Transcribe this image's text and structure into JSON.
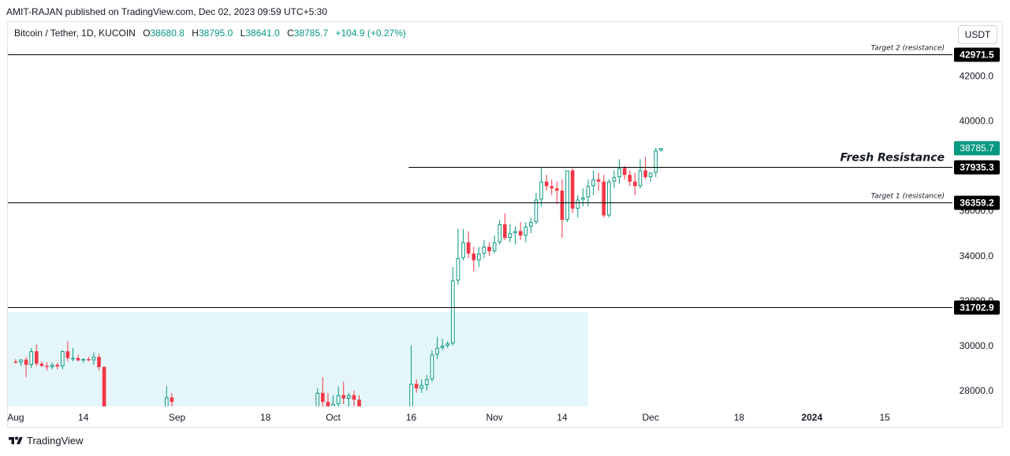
{
  "header": {
    "published": "AMIT-RAJAN published on TradingView.com, Dec 02, 2023 09:59 UTC+5:30"
  },
  "legend": {
    "symbol": "Bitcoin / Tether, 1D, KUCOIN",
    "o_label": "O",
    "o_value": "38680.8",
    "h_label": "H",
    "h_value": "38795.0",
    "l_label": "L",
    "l_value": "38641.0",
    "c_label": "C",
    "c_value": "38785.7",
    "change": "+104.9 (+0.27%)"
  },
  "currency_button": "USDT",
  "footer": {
    "brand": "TradingView"
  },
  "colors": {
    "up": "#089981",
    "down": "#f23645",
    "zone": "#e4f6f9",
    "line": "#000000"
  },
  "chart_data": {
    "type": "candlestick",
    "ylim": [
      27300,
      44400
    ],
    "y_ticks": [
      "28000.0",
      "30000.0",
      "32000.0",
      "34000.0",
      "36000.0",
      "40000.0",
      "42000.0"
    ],
    "x_ticks": [
      {
        "label": "Aug",
        "day": 0
      },
      {
        "label": "14",
        "day": 13
      },
      {
        "label": "Sep",
        "day": 31
      },
      {
        "label": "18",
        "day": 48
      },
      {
        "label": "Oct",
        "day": 61
      },
      {
        "label": "16",
        "day": 76
      },
      {
        "label": "Nov",
        "day": 92
      },
      {
        "label": "14",
        "day": 105
      },
      {
        "label": "Dec",
        "day": 122
      },
      {
        "label": "18",
        "day": 139
      },
      {
        "label": "2024",
        "day": 153
      },
      {
        "label": "15",
        "day": 167
      }
    ],
    "x_range": [
      -1.5,
      180
    ],
    "last_price": {
      "value": 38785.7,
      "label": "38785.7"
    },
    "levels": [
      {
        "value": 42971.5,
        "label": "42971.5",
        "caption": "Target 2 (resistance)",
        "start_day": -1.5
      },
      {
        "value": 37935.3,
        "label": "37935.3",
        "caption": "Fresh Resistance",
        "start_day": 75.5
      },
      {
        "value": 36359.2,
        "label": "36359.2",
        "caption": "Target 1 (resistance)",
        "start_day": -1.5
      },
      {
        "value": 31702.9,
        "label": "31702.9",
        "caption": "",
        "start_day": -1.5
      }
    ],
    "zone": {
      "from_day": -1.5,
      "to_day": 110,
      "top": 31500,
      "bottom": 27300
    },
    "candles": [
      {
        "d": 0,
        "o": 29300,
        "h": 29400,
        "l": 29200,
        "c": 29250
      },
      {
        "d": 1,
        "o": 29250,
        "h": 29400,
        "l": 29100,
        "c": 29380
      },
      {
        "d": 2,
        "o": 29380,
        "h": 29500,
        "l": 28600,
        "c": 29150
      },
      {
        "d": 3,
        "o": 29150,
        "h": 29900,
        "l": 29000,
        "c": 29750
      },
      {
        "d": 4,
        "o": 29750,
        "h": 30050,
        "l": 29100,
        "c": 29200
      },
      {
        "d": 5,
        "o": 29200,
        "h": 29300,
        "l": 29050,
        "c": 29100
      },
      {
        "d": 6,
        "o": 29100,
        "h": 29250,
        "l": 28900,
        "c": 29050
      },
      {
        "d": 7,
        "o": 29050,
        "h": 29250,
        "l": 28950,
        "c": 29150
      },
      {
        "d": 8,
        "o": 29150,
        "h": 29250,
        "l": 28950,
        "c": 29080
      },
      {
        "d": 9,
        "o": 29080,
        "h": 29800,
        "l": 28950,
        "c": 29750
      },
      {
        "d": 10,
        "o": 29750,
        "h": 30200,
        "l": 29300,
        "c": 29450
      },
      {
        "d": 11,
        "o": 29450,
        "h": 29900,
        "l": 29300,
        "c": 29450
      },
      {
        "d": 12,
        "o": 29450,
        "h": 29600,
        "l": 29300,
        "c": 29350
      },
      {
        "d": 13,
        "o": 29350,
        "h": 29450,
        "l": 29250,
        "c": 29400
      },
      {
        "d": 14,
        "o": 29400,
        "h": 29500,
        "l": 29300,
        "c": 29350
      },
      {
        "d": 15,
        "o": 29350,
        "h": 29700,
        "l": 29150,
        "c": 29500
      },
      {
        "d": 16,
        "o": 29500,
        "h": 29650,
        "l": 28900,
        "c": 29050
      },
      {
        "d": 17,
        "o": 29050,
        "h": 29100,
        "l": 25500,
        "c": 26300
      },
      {
        "d": 29,
        "o": 27000,
        "h": 28200,
        "l": 26800,
        "c": 27700
      },
      {
        "d": 30,
        "o": 27700,
        "h": 27900,
        "l": 27100,
        "c": 27500
      },
      {
        "d": 58,
        "o": 27000,
        "h": 28100,
        "l": 26900,
        "c": 27900
      },
      {
        "d": 59,
        "o": 27900,
        "h": 28600,
        "l": 27300,
        "c": 27500
      },
      {
        "d": 60,
        "o": 27500,
        "h": 27900,
        "l": 27000,
        "c": 27200
      },
      {
        "d": 61,
        "o": 27200,
        "h": 27800,
        "l": 26500,
        "c": 27400
      },
      {
        "d": 62,
        "o": 27400,
        "h": 28200,
        "l": 27000,
        "c": 27800
      },
      {
        "d": 63,
        "o": 27800,
        "h": 28400,
        "l": 27400,
        "c": 27650
      },
      {
        "d": 64,
        "o": 27650,
        "h": 27900,
        "l": 27200,
        "c": 27800
      },
      {
        "d": 65,
        "o": 27800,
        "h": 28000,
        "l": 27300,
        "c": 27600
      },
      {
        "d": 66,
        "o": 27600,
        "h": 27800,
        "l": 26900,
        "c": 27100
      },
      {
        "d": 76,
        "o": 26800,
        "h": 30000,
        "l": 26700,
        "c": 28300
      },
      {
        "d": 77,
        "o": 28300,
        "h": 28500,
        "l": 27900,
        "c": 28100
      },
      {
        "d": 78,
        "o": 28100,
        "h": 28500,
        "l": 27900,
        "c": 28250
      },
      {
        "d": 79,
        "o": 28250,
        "h": 28700,
        "l": 28000,
        "c": 28500
      },
      {
        "d": 80,
        "o": 28500,
        "h": 29800,
        "l": 28400,
        "c": 29600
      },
      {
        "d": 81,
        "o": 29600,
        "h": 30400,
        "l": 29400,
        "c": 29900
      },
      {
        "d": 82,
        "o": 29900,
        "h": 30300,
        "l": 29800,
        "c": 30000
      },
      {
        "d": 83,
        "o": 30000,
        "h": 30200,
        "l": 29900,
        "c": 30100
      },
      {
        "d": 84,
        "o": 30100,
        "h": 33500,
        "l": 30000,
        "c": 32900
      },
      {
        "d": 85,
        "o": 32900,
        "h": 35200,
        "l": 32700,
        "c": 33900
      },
      {
        "d": 86,
        "o": 33900,
        "h": 35200,
        "l": 33800,
        "c": 34600
      },
      {
        "d": 87,
        "o": 34600,
        "h": 35100,
        "l": 33900,
        "c": 34100
      },
      {
        "d": 88,
        "o": 34100,
        "h": 34400,
        "l": 33300,
        "c": 33800
      },
      {
        "d": 89,
        "o": 33800,
        "h": 34400,
        "l": 33500,
        "c": 34100
      },
      {
        "d": 90,
        "o": 34100,
        "h": 34700,
        "l": 33900,
        "c": 34400
      },
      {
        "d": 91,
        "o": 34400,
        "h": 34600,
        "l": 34000,
        "c": 34200
      },
      {
        "d": 92,
        "o": 34200,
        "h": 34900,
        "l": 34100,
        "c": 34600
      },
      {
        "d": 93,
        "o": 34600,
        "h": 35600,
        "l": 34500,
        "c": 35400
      },
      {
        "d": 94,
        "o": 35400,
        "h": 35900,
        "l": 34700,
        "c": 34800
      },
      {
        "d": 95,
        "o": 34800,
        "h": 35400,
        "l": 34600,
        "c": 35000
      },
      {
        "d": 96,
        "o": 35000,
        "h": 35300,
        "l": 34500,
        "c": 35100
      },
      {
        "d": 97,
        "o": 35100,
        "h": 35500,
        "l": 34700,
        "c": 34900
      },
      {
        "d": 98,
        "o": 34900,
        "h": 35500,
        "l": 34600,
        "c": 35300
      },
      {
        "d": 99,
        "o": 35300,
        "h": 35700,
        "l": 35000,
        "c": 35500
      },
      {
        "d": 100,
        "o": 35500,
        "h": 36800,
        "l": 35400,
        "c": 36500
      },
      {
        "d": 101,
        "o": 36500,
        "h": 37900,
        "l": 36200,
        "c": 37300
      },
      {
        "d": 102,
        "o": 37300,
        "h": 37600,
        "l": 36900,
        "c": 37100
      },
      {
        "d": 103,
        "o": 37100,
        "h": 37400,
        "l": 36700,
        "c": 37000
      },
      {
        "d": 104,
        "o": 37000,
        "h": 37300,
        "l": 36300,
        "c": 36900
      },
      {
        "d": 105,
        "o": 36900,
        "h": 37400,
        "l": 34800,
        "c": 35600
      },
      {
        "d": 106,
        "o": 35600,
        "h": 37800,
        "l": 35500,
        "c": 37800
      },
      {
        "d": 107,
        "o": 37800,
        "h": 37900,
        "l": 35900,
        "c": 36100
      },
      {
        "d": 108,
        "o": 36100,
        "h": 36700,
        "l": 35700,
        "c": 36500
      },
      {
        "d": 109,
        "o": 36500,
        "h": 37000,
        "l": 36200,
        "c": 36600
      },
      {
        "d": 110,
        "o": 36600,
        "h": 37400,
        "l": 36200,
        "c": 37100
      },
      {
        "d": 111,
        "o": 37100,
        "h": 37800,
        "l": 36700,
        "c": 37400
      },
      {
        "d": 112,
        "o": 37400,
        "h": 37700,
        "l": 36900,
        "c": 37300
      },
      {
        "d": 113,
        "o": 37300,
        "h": 37600,
        "l": 35700,
        "c": 35800
      },
      {
        "d": 114,
        "o": 35800,
        "h": 37400,
        "l": 35700,
        "c": 37300
      },
      {
        "d": 115,
        "o": 37300,
        "h": 37800,
        "l": 37000,
        "c": 37500
      },
      {
        "d": 116,
        "o": 37500,
        "h": 38300,
        "l": 37200,
        "c": 37900
      },
      {
        "d": 117,
        "o": 37900,
        "h": 38000,
        "l": 37400,
        "c": 37600
      },
      {
        "d": 118,
        "o": 37600,
        "h": 37800,
        "l": 37100,
        "c": 37300
      },
      {
        "d": 119,
        "o": 37300,
        "h": 37700,
        "l": 36700,
        "c": 37100
      },
      {
        "d": 120,
        "o": 37100,
        "h": 38300,
        "l": 37000,
        "c": 37800
      },
      {
        "d": 121,
        "o": 37800,
        "h": 38400,
        "l": 37400,
        "c": 37500
      },
      {
        "d": 122,
        "o": 37500,
        "h": 37700,
        "l": 37300,
        "c": 37700
      },
      {
        "d": 123,
        "o": 37700,
        "h": 38800,
        "l": 37500,
        "c": 38680
      },
      {
        "d": 124,
        "o": 38680.8,
        "h": 38795.0,
        "l": 38641.0,
        "c": 38785.7
      }
    ]
  }
}
